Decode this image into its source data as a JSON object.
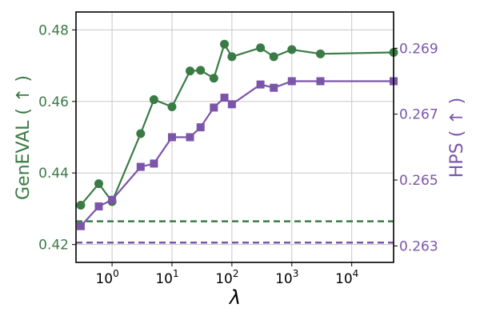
{
  "chart_data": {
    "type": "line",
    "xlabel": "λ",
    "xscale": "log",
    "xlim": [
      0.25,
      50000
    ],
    "xticks": [
      {
        "value": 1,
        "base": "10",
        "exp": "0"
      },
      {
        "value": 10,
        "base": "10",
        "exp": "1"
      },
      {
        "value": 100,
        "base": "10",
        "exp": "2"
      },
      {
        "value": 1000,
        "base": "10",
        "exp": "3"
      },
      {
        "value": 10000,
        "base": "10",
        "exp": "4"
      }
    ],
    "ylabel_left": "GenEVAL ( ↑ )",
    "ylim_left": [
      0.415,
      0.485
    ],
    "yticks_left": [
      "0.42",
      "0.44",
      "0.46",
      "0.48"
    ],
    "ylabel_right": "HPS ( ↑ )",
    "ylim_right": [
      0.2625,
      0.2701
    ],
    "yticks_right": [
      "0.263",
      "0.265",
      "0.267",
      "0.269"
    ],
    "grid": true,
    "colors": {
      "geneval": "#3a7a45",
      "hps": "#7b55aa"
    },
    "series": [
      {
        "key": "geneval",
        "axis": "left",
        "marker": "circle",
        "x": [
          0.3,
          0.6,
          1,
          3,
          5,
          10,
          20,
          30,
          50,
          75,
          100,
          300,
          500,
          1000,
          3000,
          50000
        ],
        "values": [
          0.431,
          0.437,
          0.432,
          0.451,
          0.4605,
          0.4585,
          0.4685,
          0.4687,
          0.4665,
          0.476,
          0.4725,
          0.475,
          0.4725,
          0.4745,
          0.4733,
          0.4737
        ],
        "baseline": 0.4265
      },
      {
        "key": "hps",
        "axis": "right",
        "marker": "square",
        "x": [
          0.3,
          0.6,
          1,
          3,
          5,
          10,
          20,
          30,
          50,
          75,
          100,
          300,
          500,
          1000,
          3000,
          50000
        ],
        "values": [
          0.2636,
          0.2642,
          0.2644,
          0.2654,
          0.2655,
          0.2663,
          0.2663,
          0.2666,
          0.2672,
          0.2675,
          0.2673,
          0.2679,
          0.2678,
          0.268,
          0.268,
          0.268
        ],
        "baseline": 0.2631
      }
    ]
  }
}
